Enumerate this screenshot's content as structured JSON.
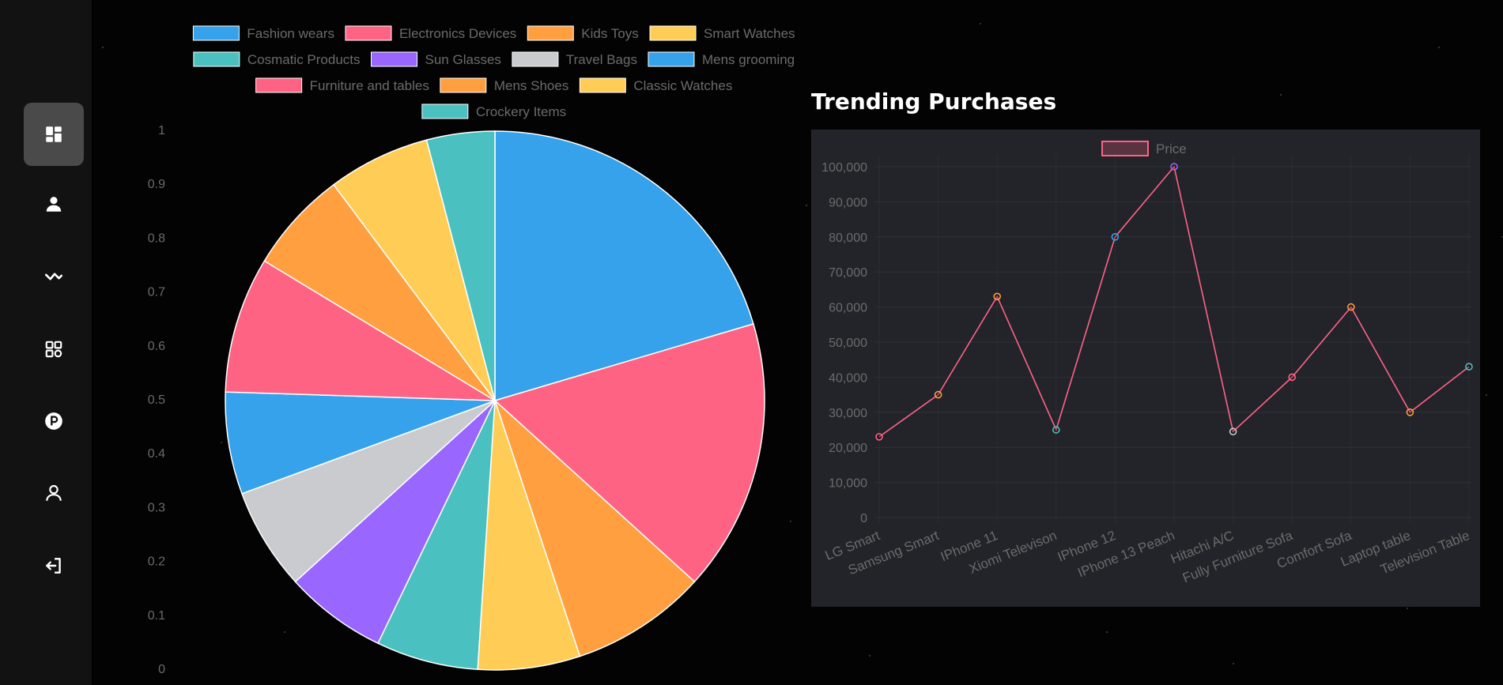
{
  "sidebar": {
    "items": [
      {
        "icon": "dashboard-icon",
        "active": true
      },
      {
        "icon": "user-icon",
        "active": false
      },
      {
        "icon": "analytics-icon",
        "active": false
      },
      {
        "icon": "apps-icon",
        "active": false
      },
      {
        "icon": "parking-icon",
        "active": false
      },
      {
        "icon": "profile-icon",
        "active": false
      },
      {
        "icon": "logout-icon",
        "active": false
      }
    ]
  },
  "chart_data": [
    {
      "type": "pie",
      "categories": [
        "Fashion wears",
        "Electronics Devices",
        "Kids Toys",
        "Smart Watches",
        "Cosmatic Products",
        "Sun Glasses",
        "Travel Bags",
        "Mens grooming",
        "Furniture and tables",
        "Mens Shoes",
        "Classic Watches",
        "Crockery Items"
      ],
      "values": [
        20,
        16,
        8,
        6,
        6,
        6,
        6,
        6,
        8,
        6,
        6,
        4
      ],
      "colors": [
        "#36a2eb",
        "#ff6384",
        "#ff9f40",
        "#ffcd56",
        "#4bc0c0",
        "#9966ff",
        "#c9cbcf",
        "#36a2eb",
        "#ff6384",
        "#ff9f40",
        "#ffcd56",
        "#4bc0c0"
      ],
      "legend_position": "top",
      "grid": true,
      "ylim": [
        0,
        1
      ],
      "yticks": [
        "1",
        "0.9",
        "0.8",
        "0.7",
        "0.6",
        "0.5",
        "0.4",
        "0.3",
        "0.2",
        "0.1",
        "0"
      ]
    },
    {
      "type": "line",
      "title": "Trending Purchases",
      "categories": [
        "LG Smart",
        "Samsung Smart",
        "IPhone 11",
        "Xiomi Televison",
        "IPhone 12",
        "IPhone 13 Peach",
        "Hitachi A/C",
        "Fully Furniture Sofa",
        "Comfort Sofa",
        "Laptop table",
        "Television Table"
      ],
      "series": [
        {
          "name": "Price",
          "values": [
            23000,
            35000,
            63000,
            25000,
            80000,
            100000,
            24500,
            40000,
            60000,
            30000,
            43000
          ]
        }
      ],
      "point_colors": [
        "#ff6384",
        "#ff9f40",
        "#ff9f40",
        "#4bc0c0",
        "#36a2eb",
        "#9966ff",
        "#c9cbcf",
        "#ff6384",
        "#ff9f40",
        "#ff9f40",
        "#4bc0c0"
      ],
      "line_color": "#ff6384",
      "background": "#22242a",
      "ylim": [
        0,
        100000
      ],
      "yticks": [
        "0",
        "10,000",
        "20,000",
        "30,000",
        "40,000",
        "50,000",
        "60,000",
        "70,000",
        "80,000",
        "90,000",
        "100,000"
      ],
      "legend_position": "top",
      "grid": true
    }
  ]
}
